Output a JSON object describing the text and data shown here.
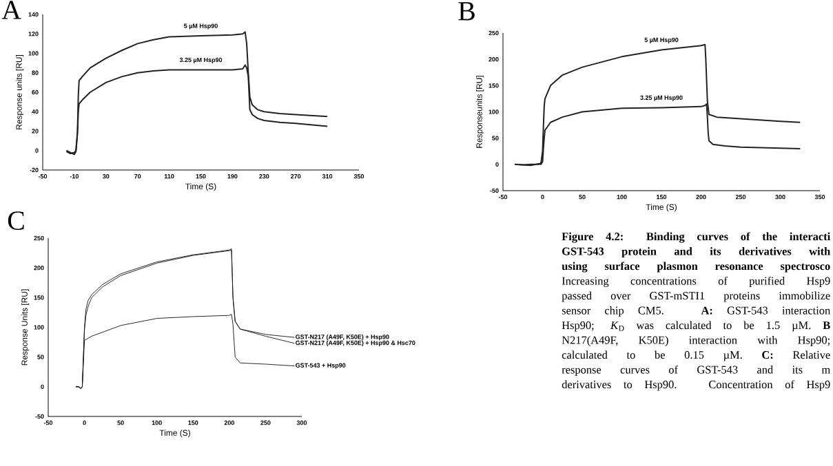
{
  "chart_data": [
    {
      "type": "line",
      "title": "A",
      "xlabel": "Time (S)",
      "ylabel": "Response units [RU]",
      "xlim": [
        -50,
        350
      ],
      "ylim": [
        -20,
        140
      ],
      "xticks": [
        -50,
        -10,
        30,
        70,
        110,
        150,
        190,
        230,
        270,
        310,
        350
      ],
      "yticks": [
        -20,
        0,
        20,
        40,
        60,
        80,
        100,
        120,
        140
      ],
      "marker": "none",
      "grid": false,
      "legend": false,
      "series": [
        {
          "name": "5 µM Hsp90",
          "color": "#222222",
          "x": [
            -20,
            -15,
            -10,
            -8,
            -6,
            -5,
            -4,
            0,
            10,
            30,
            50,
            70,
            90,
            110,
            150,
            190,
            203,
            206,
            208,
            210,
            212,
            215,
            222,
            230,
            250,
            270,
            310
          ],
          "values": [
            -1,
            -3,
            -2,
            0,
            20,
            56,
            72,
            76,
            85,
            95,
            103,
            110,
            114,
            117,
            118,
            119,
            120,
            122,
            110,
            80,
            55,
            47,
            42,
            40,
            38,
            37,
            35
          ]
        },
        {
          "name": "3.25 µM Hsp90",
          "color": "#222222",
          "x": [
            -20,
            -15,
            -10,
            -8,
            -6,
            -5,
            -4,
            0,
            10,
            30,
            50,
            70,
            90,
            110,
            150,
            190,
            203,
            206,
            208,
            210,
            212,
            215,
            222,
            230,
            250,
            270,
            310
          ],
          "values": [
            0,
            -2,
            -4,
            -1,
            18,
            40,
            48,
            52,
            60,
            70,
            76,
            80,
            82,
            83,
            83,
            83,
            84,
            88,
            85,
            76,
            42,
            37,
            33,
            31,
            29,
            28,
            25
          ]
        }
      ]
    },
    {
      "type": "line",
      "title": "B",
      "xlabel": "Time (S)",
      "ylabel": "Responseunits [RU]",
      "xlim": [
        -50,
        350
      ],
      "ylim": [
        -50,
        250
      ],
      "xticks": [
        -50,
        0,
        50,
        100,
        150,
        200,
        250,
        300,
        350
      ],
      "yticks": [
        -50,
        0,
        50,
        100,
        150,
        200,
        250
      ],
      "marker": "none",
      "grid": false,
      "legend": false,
      "series": [
        {
          "name": "5 µM Hsp90",
          "color": "#222222",
          "x": [
            -35,
            -25,
            -15,
            -5,
            -2,
            0,
            1,
            2,
            3,
            10,
            25,
            50,
            100,
            150,
            200,
            205,
            206,
            207,
            208,
            210,
            220,
            250,
            300,
            325
          ],
          "values": [
            0,
            -1,
            0,
            0,
            3,
            25,
            70,
            110,
            125,
            150,
            170,
            185,
            205,
            218,
            226,
            228,
            200,
            160,
            120,
            95,
            90,
            87,
            82,
            80
          ]
        },
        {
          "name": "3.25 µM Hsp90",
          "color": "#222222",
          "x": [
            -35,
            -25,
            -15,
            -5,
            -2,
            0,
            1,
            2,
            3,
            10,
            25,
            50,
            100,
            150,
            200,
            205,
            207,
            208,
            209,
            210,
            215,
            230,
            250,
            300,
            325
          ],
          "values": [
            0,
            -1,
            -2,
            1,
            0,
            5,
            30,
            50,
            65,
            80,
            90,
            100,
            107,
            108,
            110,
            112,
            115,
            90,
            60,
            45,
            38,
            35,
            33,
            31,
            30
          ]
        }
      ]
    },
    {
      "type": "line",
      "title": "C",
      "xlabel": "Time (S)",
      "ylabel": "Response Units [RU]",
      "xlim": [
        -50,
        300
      ],
      "ylim": [
        -50,
        250
      ],
      "xticks": [
        -50,
        0,
        50,
        100,
        150,
        200,
        250,
        300
      ],
      "yticks": [
        -50,
        0,
        50,
        100,
        150,
        200,
        250
      ],
      "marker": "none",
      "grid": false,
      "legend": false,
      "series": [
        {
          "name": "GST-N217 (A49F, K50E) + Hsp90",
          "color": "#111111",
          "x": [
            -12,
            -8,
            -5,
            -3,
            0,
            2,
            5,
            10,
            25,
            50,
            100,
            150,
            200,
            203,
            205,
            208,
            215,
            250,
            290
          ],
          "values": [
            0,
            0,
            -3,
            0,
            100,
            130,
            145,
            155,
            172,
            190,
            210,
            222,
            230,
            232,
            150,
            110,
            97,
            88,
            83
          ]
        },
        {
          "name": "GST-N217 (A49F, K50E) + Hsp90 & Hsc70",
          "color": "#111111",
          "x": [
            -12,
            -8,
            -5,
            -3,
            0,
            2,
            5,
            10,
            25,
            50,
            100,
            150,
            200,
            203,
            205,
            208,
            215,
            250,
            290
          ],
          "values": [
            0,
            0,
            -3,
            0,
            95,
            120,
            135,
            150,
            168,
            187,
            208,
            221,
            229,
            230,
            150,
            110,
            97,
            85,
            73
          ]
        },
        {
          "name": "GST-543 + Hsp90",
          "color": "#111111",
          "x": [
            -12,
            -8,
            -5,
            -3,
            0,
            10,
            50,
            100,
            150,
            200,
            203,
            205,
            208,
            215,
            250,
            290
          ],
          "values": [
            0,
            0,
            -3,
            0,
            78,
            85,
            103,
            115,
            118,
            120,
            122,
            105,
            50,
            40,
            38,
            35
          ]
        }
      ]
    },
    {
      "type": "other",
      "annotations": [
        "**Figure 4.2: Binding curves of the interacti**",
        "**GST-543 protein and its derivatives with**",
        "**using surface plasmon resonance spectrosco**",
        "Increasing concentrations of purified Hsp9",
        "passed over GST-mSTI1 proteins immobilize",
        "sensor chip CM5. **A:** GST-543 interaction",
        "Hsp90; *K*$_{D}$ was calculated to be 1.5 µM. **B**",
        "N217(A49F, K50E) interaction with Hsp90;",
        "calculated to be 0.15 µM. **C:** Relative",
        "response curves of GST-543 and its m",
        "derivatives to Hsp90. Concentration of Hsp9"
      ]
    }
  ]
}
